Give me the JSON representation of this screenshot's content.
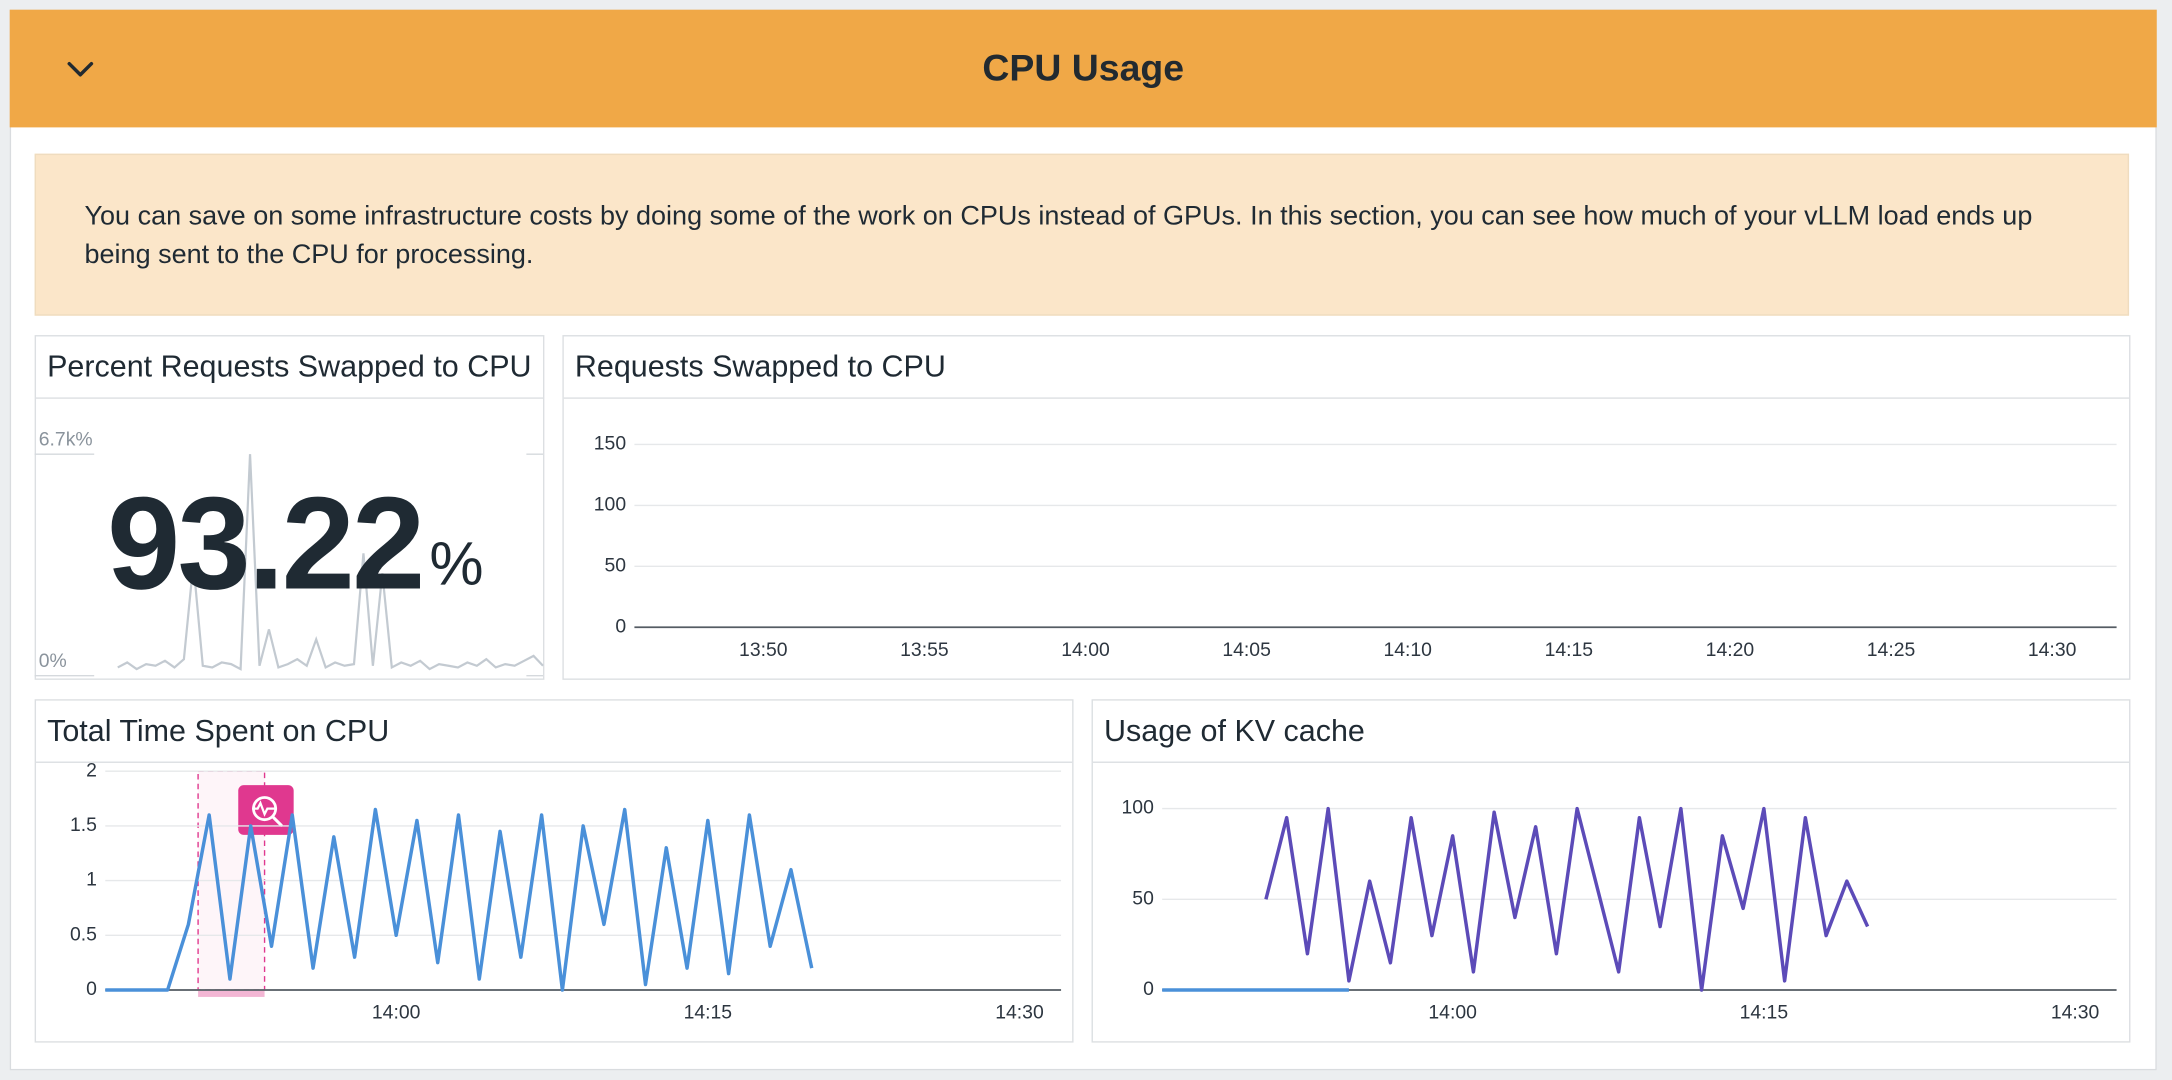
{
  "header": {
    "title": "CPU Usage"
  },
  "note": {
    "text": "You can save on some infrastructure costs by doing some of the work on CPUs instead of GPUs. In this section, you can see how much of your vLLM load ends up being sent to the CPU for processing."
  },
  "chart_data": [
    {
      "type": "stat",
      "title": "Percent Requests Swapped to CPU",
      "value": 93.22,
      "unit": "%",
      "sparkline": {
        "color": "#c3cad1",
        "values": [
          250,
          400,
          200,
          350,
          300,
          450,
          250,
          500,
          3400,
          300,
          250,
          400,
          350,
          200,
          6700,
          300,
          1400,
          250,
          350,
          500,
          300,
          1100,
          250,
          400,
          300,
          350,
          3700,
          300,
          3100,
          250,
          400,
          300,
          450,
          200,
          350,
          300,
          250,
          400,
          300,
          500,
          250,
          350,
          300,
          450,
          600,
          300
        ],
        "ylim": [
          0,
          6700
        ],
        "yticks": [
          {
            "value": 0,
            "label": "0%"
          },
          {
            "value": 6700,
            "label": "6.7k%"
          }
        ]
      }
    },
    {
      "type": "line",
      "title": "Requests Swapped to CPU",
      "xlim": [
        "13:46",
        "14:32"
      ],
      "xticks": [
        "13:50",
        "13:55",
        "14:00",
        "14:05",
        "14:10",
        "14:15",
        "14:20",
        "14:25",
        "14:30"
      ],
      "ylim": [
        0,
        150
      ],
      "yticks": [
        0,
        50,
        100,
        150
      ],
      "grid": true
    },
    {
      "type": "line",
      "title": "Total Time Spent on CPU",
      "x": [
        "13:46",
        "13:47",
        "13:48",
        "13:49",
        "13:50",
        "13:51",
        "13:52",
        "13:53",
        "13:54",
        "13:55",
        "13:56",
        "13:57",
        "13:58",
        "13:59",
        "14:00",
        "14:01",
        "14:02",
        "14:03",
        "14:04",
        "14:05",
        "14:06",
        "14:07",
        "14:08",
        "14:09",
        "14:10",
        "14:11",
        "14:12",
        "14:13",
        "14:14",
        "14:15",
        "14:16",
        "14:17",
        "14:18",
        "14:19",
        "14:20"
      ],
      "series": [
        {
          "color": "#4a90d9",
          "values": [
            0,
            0,
            0,
            0,
            0.6,
            1.6,
            0.1,
            1.5,
            0.4,
            1.6,
            0.2,
            1.4,
            0.3,
            1.65,
            0.5,
            1.55,
            0.25,
            1.6,
            0.1,
            1.45,
            0.3,
            1.6,
            0,
            1.5,
            0.6,
            1.65,
            0.05,
            1.3,
            0.2,
            1.55,
            0.15,
            1.6,
            0.4,
            1.1,
            0.2
          ]
        }
      ],
      "xlim": [
        "13:46",
        "14:32"
      ],
      "xticks": [
        "14:00",
        "14:15",
        "14:30"
      ],
      "ylim": [
        0,
        2
      ],
      "yticks": [
        0,
        0.5,
        1,
        1.5,
        2
      ],
      "grid": true
    },
    {
      "type": "line",
      "title": "Usage of KV cache",
      "x": [
        "13:46",
        "13:47",
        "13:48",
        "13:49",
        "13:50",
        "13:51",
        "13:52",
        "13:53",
        "13:54",
        "13:55",
        "13:56",
        "13:57",
        "13:58",
        "13:59",
        "14:00",
        "14:01",
        "14:02",
        "14:03",
        "14:04",
        "14:05",
        "14:06",
        "14:07",
        "14:08",
        "14:09",
        "14:10",
        "14:11",
        "14:12",
        "14:13",
        "14:14",
        "14:15",
        "14:16",
        "14:17",
        "14:18",
        "14:19",
        "14:20"
      ],
      "series": [
        {
          "color": "#5c4bb8",
          "values": [
            null,
            null,
            null,
            null,
            null,
            50,
            95,
            20,
            100,
            5,
            60,
            15,
            95,
            30,
            85,
            10,
            98,
            40,
            90,
            20,
            100,
            55,
            10,
            95,
            35,
            100,
            0,
            85,
            45,
            100,
            5,
            95,
            30,
            60,
            35
          ]
        },
        {
          "color": "#4a90d9",
          "values": [
            0,
            0,
            0,
            0,
            0,
            0,
            0,
            0,
            0,
            0,
            null,
            null,
            null,
            null,
            null,
            null,
            null,
            null,
            null,
            null,
            null,
            null,
            null,
            null,
            null,
            null,
            null,
            null,
            null,
            null,
            null,
            null,
            null,
            null,
            null
          ]
        }
      ],
      "xlim": [
        "13:46",
        "14:32"
      ],
      "xticks": [
        "14:00",
        "14:15",
        "14:30"
      ],
      "ylim": [
        0,
        100
      ],
      "yticks": [
        0,
        50,
        100
      ],
      "grid": true
    }
  ]
}
